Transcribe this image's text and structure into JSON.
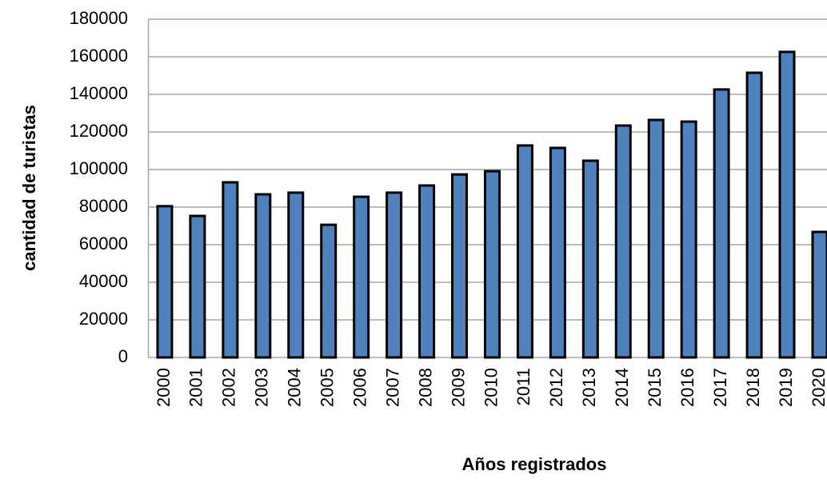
{
  "chart_data": {
    "type": "bar",
    "x_label": "Años registrados",
    "y_label": "cantidad de turistas",
    "categories": [
      "2000",
      "2001",
      "2002",
      "2003",
      "2004",
      "2005",
      "2006",
      "2007",
      "2008",
      "2009",
      "2010",
      "2011",
      "2012",
      "2013",
      "2014",
      "2015",
      "2016",
      "2017",
      "2018",
      "2019",
      "2020"
    ],
    "values": [
      80500,
      75300,
      93200,
      86800,
      87700,
      70600,
      85500,
      87700,
      91500,
      97400,
      99100,
      112800,
      111500,
      104700,
      123400,
      126400,
      125500,
      142600,
      151500,
      162600,
      66800
    ],
    "color": "#4f81bd",
    "ylim": [
      0,
      180000
    ],
    "yticks": [
      0,
      20000,
      40000,
      60000,
      80000,
      100000,
      120000,
      140000,
      160000,
      180000
    ],
    "grid": true
  }
}
